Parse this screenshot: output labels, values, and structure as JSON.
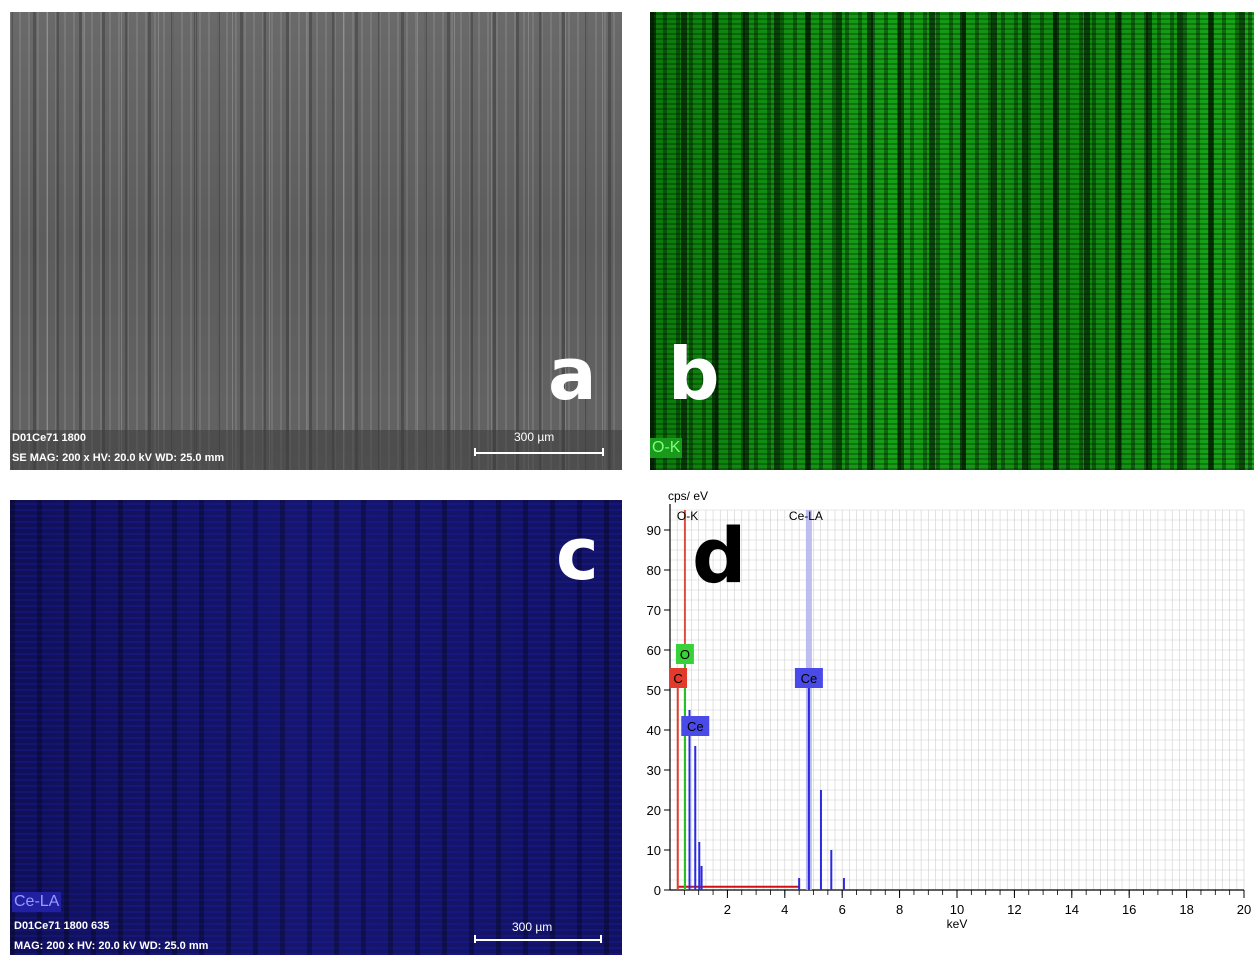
{
  "panels": {
    "a": {
      "letter": "a",
      "sample_line": "D01Ce71 1800",
      "params_line": "SE  MAG: 200 x  HV: 20.0 kV  WD: 25.0 mm",
      "scale_bar": "300 µm"
    },
    "b": {
      "letter": "b",
      "map_label": "O-K",
      "map_color": "#22c822"
    },
    "c": {
      "letter": "c",
      "map_label": "Ce-LA",
      "sample_line": "D01Ce71 1800 635",
      "params_line": "MAG: 200 x  HV: 20.0 kV  WD: 25.0 mm",
      "scale_bar": "300 µm",
      "map_color": "#2a2ae0"
    },
    "d": {
      "letter": "d"
    }
  },
  "chart_data": {
    "type": "line",
    "title": "",
    "ylabel": "cps/ eV",
    "xlabel": "keV",
    "xlim": [
      0,
      20
    ],
    "ylim": [
      0,
      95
    ],
    "x_ticks": [
      2,
      4,
      6,
      8,
      10,
      12,
      14,
      16,
      18,
      20
    ],
    "y_ticks": [
      0,
      10,
      20,
      30,
      40,
      50,
      60,
      70,
      80,
      90
    ],
    "grid": true,
    "line_markers": [
      {
        "label": "O-K",
        "x": 0.52,
        "color": "#e23b2b"
      },
      {
        "label": "Ce-LA",
        "x": 4.84,
        "color": "#b8b8f0"
      }
    ],
    "peak_labels": [
      {
        "label": "O",
        "x": 0.52,
        "y": 59,
        "color": "#39d139"
      },
      {
        "label": "C",
        "x": 0.28,
        "y": 53,
        "color": "#e23b2b"
      },
      {
        "label": "Ce",
        "x": 0.88,
        "y": 41,
        "color": "#4a4ae8"
      },
      {
        "label": "Ce",
        "x": 4.84,
        "y": 53,
        "color": "#4a4ae8"
      }
    ],
    "series": [
      {
        "name": "C",
        "color": "#e23b2b",
        "values": [
          [
            0.27,
            55
          ]
        ]
      },
      {
        "name": "O",
        "color": "#22c022",
        "values": [
          [
            0.52,
            60
          ]
        ]
      },
      {
        "name": "Ce",
        "color": "#2a2ae0",
        "values": [
          [
            0.68,
            45
          ],
          [
            0.88,
            36
          ],
          [
            1.02,
            12
          ],
          [
            1.1,
            6
          ],
          [
            4.5,
            3
          ],
          [
            4.84,
            52
          ],
          [
            5.26,
            25
          ],
          [
            5.62,
            10
          ],
          [
            6.06,
            3
          ]
        ]
      }
    ]
  }
}
